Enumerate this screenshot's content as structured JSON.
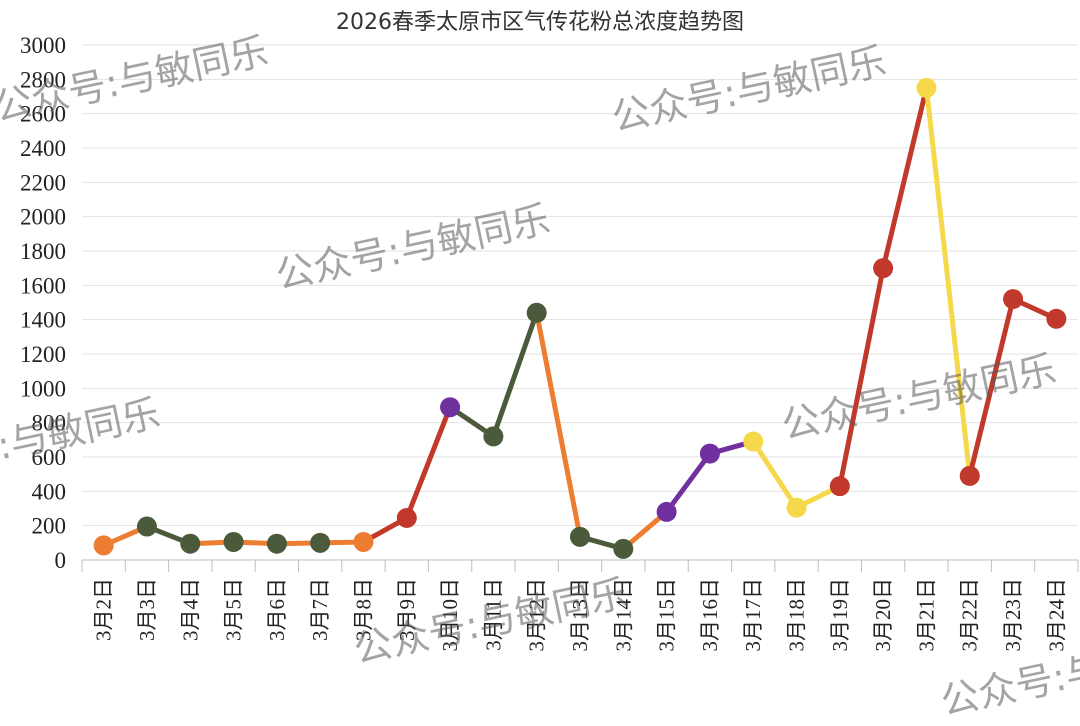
{
  "chart_data": {
    "type": "line",
    "title": "2026春季太原市区气传花粉总浓度趋势图",
    "xlabel": "",
    "ylabel": "",
    "ylim": [
      0,
      3000
    ],
    "yticks": [
      0,
      200,
      400,
      600,
      800,
      1000,
      1200,
      1400,
      1600,
      1800,
      2000,
      2200,
      2400,
      2600,
      2800,
      3000
    ],
    "grid": true,
    "categories": [
      "3月2日",
      "3月3日",
      "3月4日",
      "3月5日",
      "3月6日",
      "3月7日",
      "3月8日",
      "3月9日",
      "3月10日",
      "3月11日",
      "3月12日",
      "3月13日",
      "3月14日",
      "3月15日",
      "3月16日",
      "3月17日",
      "3月18日",
      "3月19日",
      "3月20日",
      "3月21日",
      "3月22日",
      "3月23日",
      "3月24日"
    ],
    "values": [
      85,
      195,
      95,
      105,
      95,
      100,
      105,
      245,
      890,
      720,
      1440,
      135,
      65,
      280,
      620,
      690,
      305,
      430,
      1700,
      2750,
      490,
      1520,
      1405
    ],
    "point_colors": [
      "#ED7D31",
      "#4A5A3A",
      "#4A5A3A",
      "#4A5A3A",
      "#4A5A3A",
      "#4A5A3A",
      "#ED7D31",
      "#C0392B",
      "#7030A0",
      "#4A5A3A",
      "#4A5A3A",
      "#4A5A3A",
      "#4A5A3A",
      "#7030A0",
      "#7030A0",
      "#F5D94A",
      "#F5D94A",
      "#C0392B",
      "#C0392B",
      "#F5D94A",
      "#C0392B",
      "#C0392B",
      "#C0392B"
    ],
    "segment_colors": [
      "#ED7D31",
      "#4A5A3A",
      "#ED7D31",
      "#ED7D31",
      "#ED7D31",
      "#ED7D31",
      "#C0392B",
      "#C0392B",
      "#4A5A3A",
      "#4A5A3A",
      "#ED7D31",
      "#4A5A3A",
      "#ED7D31",
      "#7030A0",
      "#7030A0",
      "#F5D94A",
      "#F5D94A",
      "#C0392B",
      "#C0392B",
      "#F5D94A",
      "#C0392B",
      "#C0392B"
    ]
  },
  "watermarks": [
    "公众号:与敏同乐",
    "公众号:与敏同乐",
    "公众号:与敏同乐",
    "公众号:与敏同乐",
    "公众号:与敏同乐",
    "公众号:与敏同乐",
    "公众号:与敏同乐"
  ]
}
